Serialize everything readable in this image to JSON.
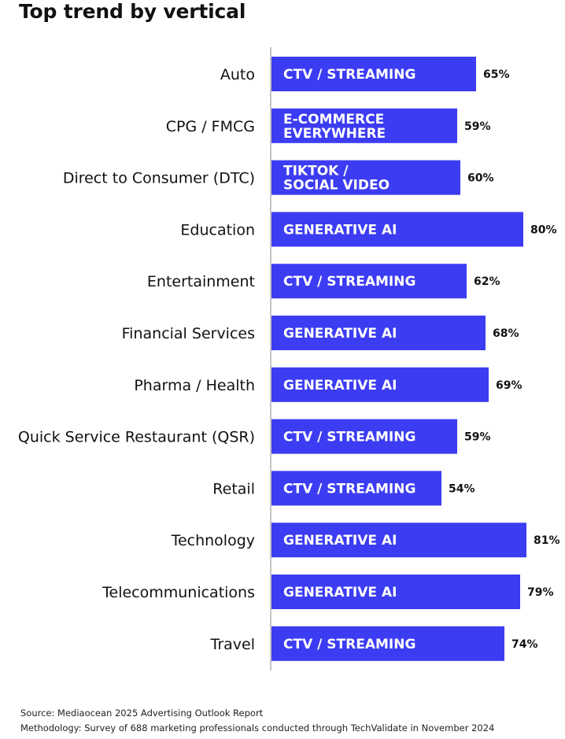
{
  "title": "Top trend by vertical",
  "colors": {
    "bar": "#3c3cf2",
    "axis": "#b0b0b0"
  },
  "chart_data": {
    "type": "bar",
    "orientation": "horizontal",
    "title": "Top trend by vertical",
    "categories": [
      "Auto",
      "CPG / FMCG",
      "Direct to Consumer (DTC)",
      "Education",
      "Entertainment",
      "Financial Services",
      "Pharma / Health",
      "Quick Service Restaurant (QSR)",
      "Retail",
      "Technology",
      "Telecommunications",
      "Travel"
    ],
    "values": [
      65,
      59,
      60,
      80,
      62,
      68,
      69,
      59,
      54,
      81,
      79,
      74
    ],
    "value_labels": [
      "65%",
      "59%",
      "60%",
      "80%",
      "62%",
      "68%",
      "69%",
      "59%",
      "54%",
      "81%",
      "79%",
      "74%"
    ],
    "bar_labels": [
      [
        "CTV / STREAMING"
      ],
      [
        "E-COMMERCE",
        "EVERYWHERE"
      ],
      [
        "TIKTOK /",
        "SOCIAL VIDEO"
      ],
      [
        "GENERATIVE AI"
      ],
      [
        "CTV / STREAMING"
      ],
      [
        "GENERATIVE AI"
      ],
      [
        "GENERATIVE AI"
      ],
      [
        "CTV / STREAMING"
      ],
      [
        "CTV / STREAMING"
      ],
      [
        "GENERATIVE AI"
      ],
      [
        "GENERATIVE AI"
      ],
      [
        "CTV / STREAMING"
      ]
    ],
    "xlim": [
      0,
      100
    ],
    "unit": "%",
    "grid": false,
    "legend": "none"
  },
  "footer": {
    "source": "Source: Mediaocean 2025 Advertising Outlook Report",
    "methodology": "Methodology: Survey of 688 marketing professionals conducted through TechValidate in November 2024"
  }
}
